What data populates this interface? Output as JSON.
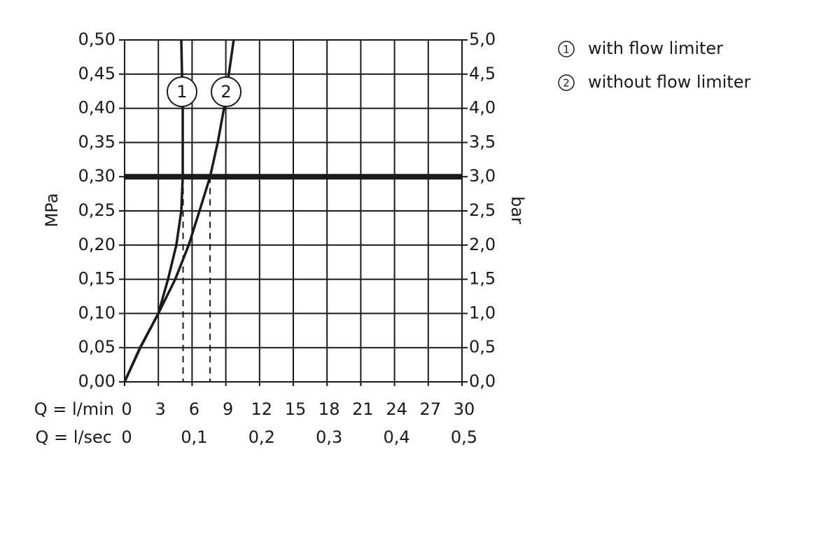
{
  "chart_data": {
    "type": "line",
    "xlabel": "Q = l/min",
    "x2label": "Q = l/sec",
    "ylabel": "MPa",
    "y2label": "bar",
    "xlim": [
      0,
      30
    ],
    "xticks": [
      0,
      3,
      6,
      9,
      12,
      15,
      18,
      21,
      24,
      27,
      30
    ],
    "x2lim": [
      0,
      0.5
    ],
    "x2ticks": [
      0,
      {
        "value": 0.1,
        "label": "0,1"
      },
      {
        "value": 0.2,
        "label": "0,2"
      },
      {
        "value": 0.3,
        "label": "0,3"
      },
      {
        "value": 0.4,
        "label": "0,4"
      },
      {
        "value": 0.5,
        "label": "0,5"
      }
    ],
    "ylim": [
      0,
      0.5
    ],
    "yticks": [
      {
        "value": 0,
        "label": "0,00"
      },
      {
        "value": 0.05,
        "label": "0,05"
      },
      {
        "value": 0.1,
        "label": "0,10"
      },
      {
        "value": 0.15,
        "label": "0,15"
      },
      {
        "value": 0.2,
        "label": "0,20"
      },
      {
        "value": 0.25,
        "label": "0,25"
      },
      {
        "value": 0.3,
        "label": "0,30"
      },
      {
        "value": 0.35,
        "label": "0,35"
      },
      {
        "value": 0.4,
        "label": "0,40"
      },
      {
        "value": 0.45,
        "label": "0,45"
      },
      {
        "value": 0.5,
        "label": "0,50"
      }
    ],
    "y2lim": [
      0,
      5
    ],
    "y2ticks": [
      {
        "value": 0,
        "label": "0,0"
      },
      {
        "value": 0.5,
        "label": "0,5"
      },
      {
        "value": 1,
        "label": "1,0"
      },
      {
        "value": 1.5,
        "label": "1,5"
      },
      {
        "value": 2,
        "label": "2,0"
      },
      {
        "value": 2.5,
        "label": "2,5"
      },
      {
        "value": 3,
        "label": "3,0"
      },
      {
        "value": 3.5,
        "label": "3,5"
      },
      {
        "value": 4,
        "label": "4,0"
      },
      {
        "value": 4.5,
        "label": "4,5"
      },
      {
        "value": 5,
        "label": "5,0"
      }
    ],
    "grid": true,
    "reference_line": 0.3,
    "dashed_lines": [
      5.2,
      7.6
    ],
    "series": [
      {
        "name": "with flow limiter",
        "label": "1",
        "color": "#1a1a1a",
        "x": [
          0,
          1.37,
          3.0,
          3.86,
          4.6,
          5.04,
          5.17,
          5.17,
          5.04
        ],
        "values": [
          0,
          0.05,
          0.1,
          0.15,
          0.2,
          0.25,
          0.3,
          0.4,
          0.5
        ]
      },
      {
        "name": "without flow limiter",
        "label": "2",
        "color": "#1a1a1a",
        "x": [
          0,
          1.4,
          3.0,
          4.5,
          5.7,
          6.66,
          7.6,
          8.28,
          8.84,
          9.27,
          9.7
        ],
        "values": [
          0,
          0.05,
          0.1,
          0.15,
          0.2,
          0.25,
          0.3,
          0.35,
          0.4,
          0.45,
          0.5
        ]
      }
    ]
  }
}
